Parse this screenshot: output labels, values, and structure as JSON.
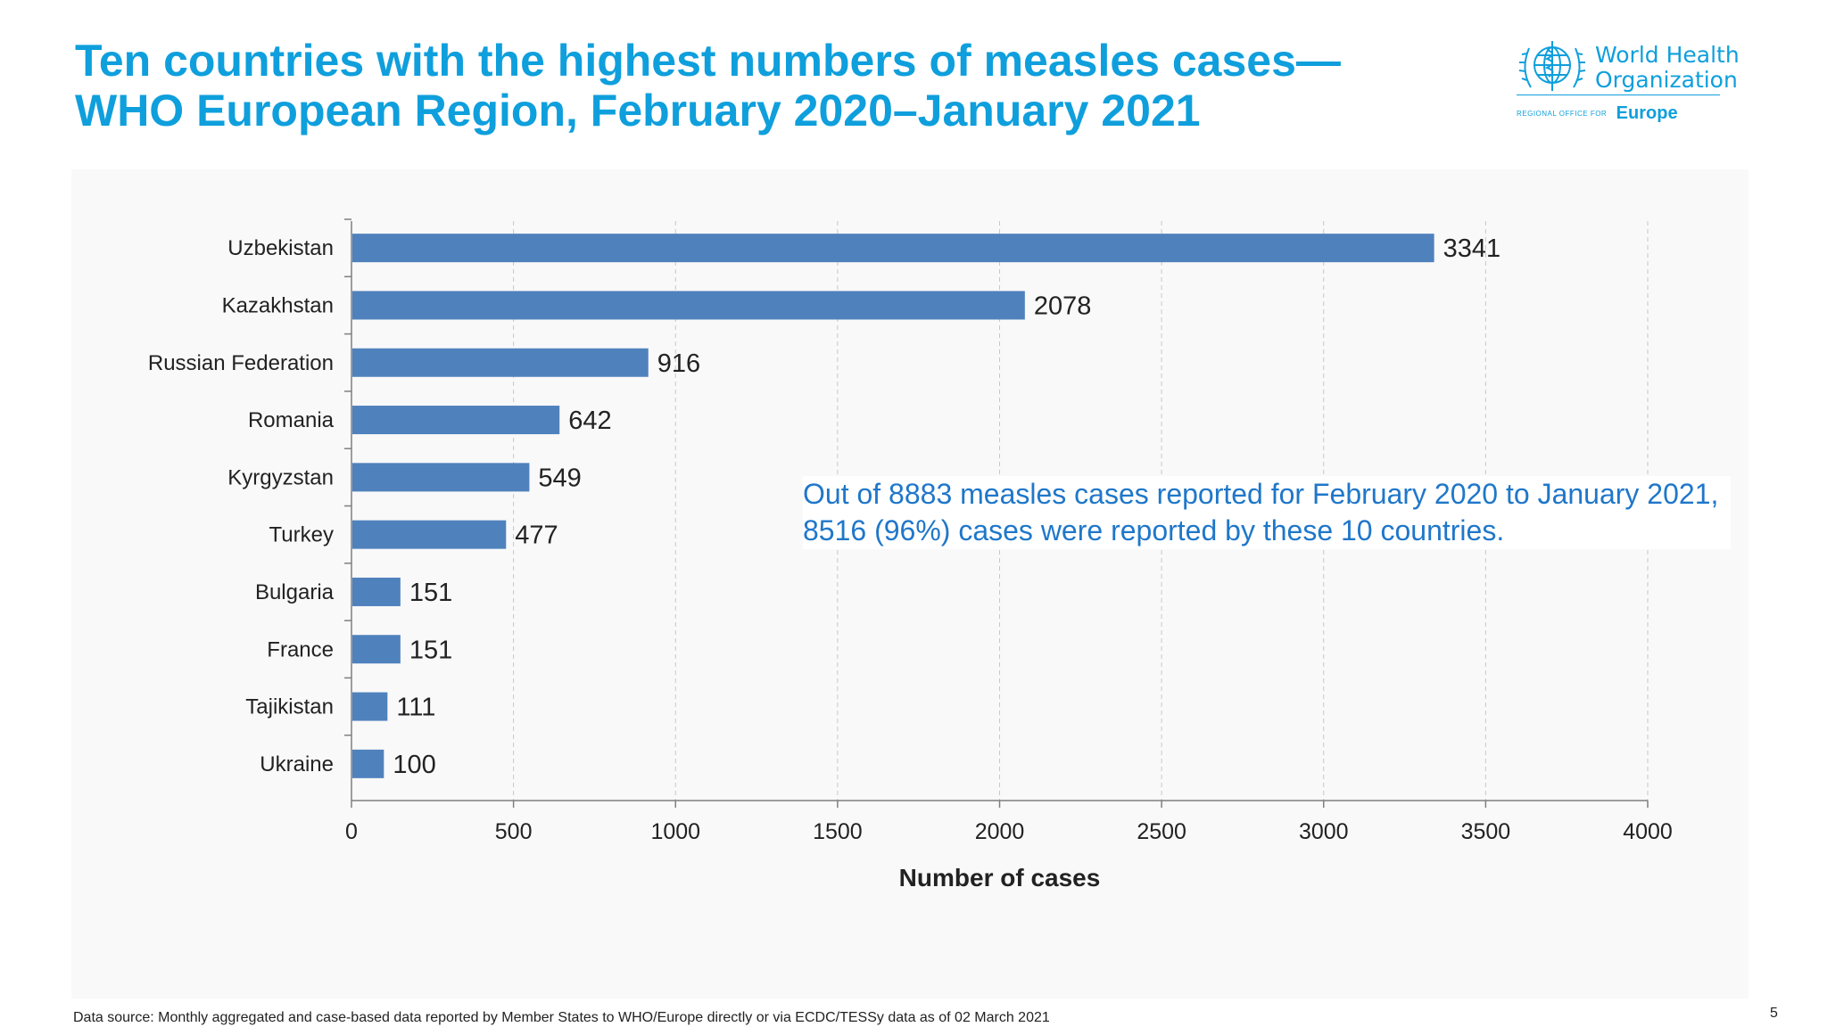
{
  "slide": {
    "title_line1": "Ten countries with the highest numbers of measles cases—",
    "title_line2": "WHO European Region, February 2020–January 2021",
    "annotation": "Out of 8883 measles cases reported for February 2020 to January 2021, 8516 (96%) cases were reported by these 10 countries.",
    "source": "Data source: Monthly aggregated and case-based data reported by Member States to WHO/Europe directly or via ECDC/TESSy data as of 02 March 2021",
    "page_number": "5"
  },
  "logo": {
    "line1": "World Health",
    "line2": "Organization",
    "regional": "REGIONAL OFFICE FOR",
    "region": "Europe",
    "icon": "who-emblem-icon"
  },
  "colors": {
    "title": "#0f9fdc",
    "bar": "#4f81bd",
    "annotation": "#1f77c9"
  },
  "chart_data": {
    "type": "bar",
    "orientation": "horizontal",
    "categories": [
      "Uzbekistan",
      "Kazakhstan",
      "Russian Federation",
      "Romania",
      "Kyrgyzstan",
      "Turkey",
      "Bulgaria",
      "France",
      "Tajikistan",
      "Ukraine"
    ],
    "values": [
      3341,
      2078,
      916,
      642,
      549,
      477,
      151,
      151,
      111,
      100
    ],
    "xlabel": "Number of cases",
    "ylabel": "",
    "xlim": [
      0,
      4000
    ],
    "xticks": [
      0,
      500,
      1000,
      1500,
      2000,
      2500,
      3000,
      3500,
      4000
    ],
    "grid": "vertical dashed",
    "data_labels": true
  }
}
